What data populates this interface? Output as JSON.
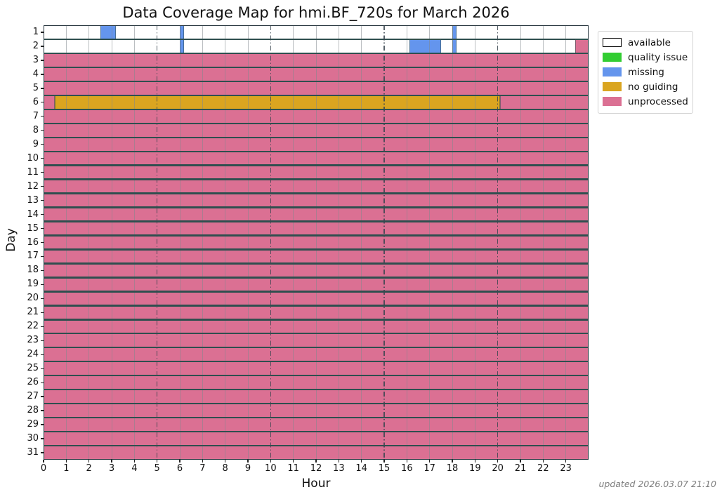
{
  "title": "Data Coverage Map for hmi.BF_720s for March 2026",
  "footer": "updated 2026.03.07 21:10",
  "chart_data": {
    "type": "heatmap",
    "title": "Data Coverage Map for hmi.BF_720s for March 2026",
    "xlabel": "Hour",
    "ylabel": "Day",
    "x_range": [
      0,
      24
    ],
    "x_tick_labels": [
      "0",
      "1",
      "2",
      "3",
      "4",
      "5",
      "6",
      "7",
      "8",
      "9",
      "10",
      "11",
      "12",
      "13",
      "14",
      "15",
      "16",
      "17",
      "18",
      "19",
      "20",
      "21",
      "22",
      "23"
    ],
    "y_tick_labels": [
      "1",
      "2",
      "3",
      "4",
      "5",
      "6",
      "7",
      "8",
      "9",
      "10",
      "11",
      "12",
      "13",
      "14",
      "15",
      "16",
      "17",
      "18",
      "19",
      "20",
      "21",
      "22",
      "23",
      "24",
      "25",
      "26",
      "27",
      "28",
      "29",
      "30",
      "31"
    ],
    "grid": {
      "minor_hours": [
        1,
        2,
        3,
        4,
        6,
        7,
        8,
        9,
        11,
        12,
        13,
        14,
        16,
        17,
        18,
        19,
        21,
        22,
        23
      ],
      "major_dashdot_hours": [
        5,
        10,
        15,
        20
      ]
    },
    "legend_position": "upper right outside",
    "statuses": [
      {
        "key": "available",
        "label": "available",
        "color": "#ffffff",
        "border": "#000000"
      },
      {
        "key": "quality",
        "label": "quality issue",
        "color": "#32cd32"
      },
      {
        "key": "missing",
        "label": "missing",
        "color": "#6495ed"
      },
      {
        "key": "noguiding",
        "label": "no guiding",
        "color": "#daa520"
      },
      {
        "key": "unprocessed",
        "label": "unprocessed",
        "color": "#db7093"
      }
    ],
    "rows": [
      {
        "day": 1,
        "segments": [
          {
            "status": "available",
            "start": 0,
            "end": 2.5
          },
          {
            "status": "missing",
            "start": 2.5,
            "end": 3.2
          },
          {
            "status": "available",
            "start": 3.2,
            "end": 6.0
          },
          {
            "status": "missing",
            "start": 6.0,
            "end": 6.2
          },
          {
            "status": "available",
            "start": 6.2,
            "end": 18.0
          },
          {
            "status": "missing",
            "start": 18.0,
            "end": 18.2
          },
          {
            "status": "available",
            "start": 18.2,
            "end": 24
          }
        ]
      },
      {
        "day": 2,
        "segments": [
          {
            "status": "available",
            "start": 0,
            "end": 6.0
          },
          {
            "status": "missing",
            "start": 6.0,
            "end": 6.2
          },
          {
            "status": "available",
            "start": 6.2,
            "end": 16.1
          },
          {
            "status": "missing",
            "start": 16.1,
            "end": 17.5
          },
          {
            "status": "available",
            "start": 17.5,
            "end": 18.0
          },
          {
            "status": "missing",
            "start": 18.0,
            "end": 18.2
          },
          {
            "status": "available",
            "start": 18.2,
            "end": 23.4
          },
          {
            "status": "unprocessed",
            "start": 23.4,
            "end": 24
          }
        ]
      },
      {
        "day": 3,
        "segments": [
          {
            "status": "unprocessed",
            "start": 0,
            "end": 24
          }
        ]
      },
      {
        "day": 4,
        "segments": [
          {
            "status": "unprocessed",
            "start": 0,
            "end": 24
          }
        ]
      },
      {
        "day": 5,
        "segments": [
          {
            "status": "unprocessed",
            "start": 0,
            "end": 24
          }
        ]
      },
      {
        "day": 6,
        "segments": [
          {
            "status": "unprocessed",
            "start": 0,
            "end": 0.5
          },
          {
            "status": "noguiding",
            "start": 0.5,
            "end": 20.1
          },
          {
            "status": "unprocessed",
            "start": 20.1,
            "end": 24
          }
        ]
      },
      {
        "day": 7,
        "segments": [
          {
            "status": "unprocessed",
            "start": 0,
            "end": 24
          }
        ]
      },
      {
        "day": 8,
        "segments": [
          {
            "status": "unprocessed",
            "start": 0,
            "end": 24
          }
        ]
      },
      {
        "day": 9,
        "segments": [
          {
            "status": "unprocessed",
            "start": 0,
            "end": 24
          }
        ]
      },
      {
        "day": 10,
        "segments": [
          {
            "status": "unprocessed",
            "start": 0,
            "end": 24
          }
        ]
      },
      {
        "day": 11,
        "segments": [
          {
            "status": "unprocessed",
            "start": 0,
            "end": 24
          }
        ]
      },
      {
        "day": 12,
        "segments": [
          {
            "status": "unprocessed",
            "start": 0,
            "end": 24
          }
        ]
      },
      {
        "day": 13,
        "segments": [
          {
            "status": "unprocessed",
            "start": 0,
            "end": 24
          }
        ]
      },
      {
        "day": 14,
        "segments": [
          {
            "status": "unprocessed",
            "start": 0,
            "end": 24
          }
        ]
      },
      {
        "day": 15,
        "segments": [
          {
            "status": "unprocessed",
            "start": 0,
            "end": 24
          }
        ]
      },
      {
        "day": 16,
        "segments": [
          {
            "status": "unprocessed",
            "start": 0,
            "end": 24
          }
        ]
      },
      {
        "day": 17,
        "segments": [
          {
            "status": "unprocessed",
            "start": 0,
            "end": 24
          }
        ]
      },
      {
        "day": 18,
        "segments": [
          {
            "status": "unprocessed",
            "start": 0,
            "end": 24
          }
        ]
      },
      {
        "day": 19,
        "segments": [
          {
            "status": "unprocessed",
            "start": 0,
            "end": 24
          }
        ]
      },
      {
        "day": 20,
        "segments": [
          {
            "status": "unprocessed",
            "start": 0,
            "end": 24
          }
        ]
      },
      {
        "day": 21,
        "segments": [
          {
            "status": "unprocessed",
            "start": 0,
            "end": 24
          }
        ]
      },
      {
        "day": 22,
        "segments": [
          {
            "status": "unprocessed",
            "start": 0,
            "end": 24
          }
        ]
      },
      {
        "day": 23,
        "segments": [
          {
            "status": "unprocessed",
            "start": 0,
            "end": 24
          }
        ]
      },
      {
        "day": 24,
        "segments": [
          {
            "status": "unprocessed",
            "start": 0,
            "end": 24
          }
        ]
      },
      {
        "day": 25,
        "segments": [
          {
            "status": "unprocessed",
            "start": 0,
            "end": 24
          }
        ]
      },
      {
        "day": 26,
        "segments": [
          {
            "status": "unprocessed",
            "start": 0,
            "end": 24
          }
        ]
      },
      {
        "day": 27,
        "segments": [
          {
            "status": "unprocessed",
            "start": 0,
            "end": 24
          }
        ]
      },
      {
        "day": 28,
        "segments": [
          {
            "status": "unprocessed",
            "start": 0,
            "end": 24
          }
        ]
      },
      {
        "day": 29,
        "segments": [
          {
            "status": "unprocessed",
            "start": 0,
            "end": 24
          }
        ]
      },
      {
        "day": 30,
        "segments": [
          {
            "status": "unprocessed",
            "start": 0,
            "end": 24
          }
        ]
      },
      {
        "day": 31,
        "segments": [
          {
            "status": "unprocessed",
            "start": 0,
            "end": 24
          }
        ]
      }
    ]
  }
}
